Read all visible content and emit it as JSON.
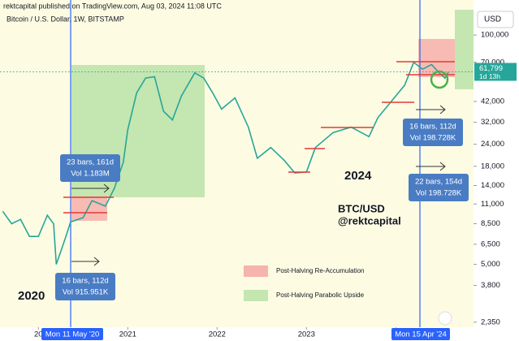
{
  "chart_data": {
    "type": "line",
    "log_scale": true,
    "color": "#26a69a",
    "header": "rektcapital published on TradingView.com, Aug 03, 2024 11:08 UTC",
    "title": "Bitcoin / U.S. Dollar, 1W, BITSTAMP",
    "currency": "USD",
    "x": [
      2019.6,
      2019.7,
      2019.8,
      2019.9,
      2020.0,
      2020.1,
      2020.17,
      2020.2,
      2020.3,
      2020.36,
      2020.5,
      2020.6,
      2020.75,
      2020.85,
      2020.95,
      2021.0,
      2021.1,
      2021.2,
      2021.3,
      2021.4,
      2021.5,
      2021.6,
      2021.75,
      2021.85,
      2021.95,
      2022.05,
      2022.2,
      2022.35,
      2022.45,
      2022.6,
      2022.75,
      2022.87,
      2023.0,
      2023.1,
      2023.3,
      2023.5,
      2023.7,
      2023.8,
      2023.95,
      2024.1,
      2024.2,
      2024.3,
      2024.4,
      2024.5,
      2024.55,
      2024.59
    ],
    "values": [
      10000,
      8500,
      9000,
      7200,
      7200,
      9500,
      8500,
      5000,
      7000,
      8700,
      9200,
      11500,
      10700,
      13500,
      19000,
      29000,
      47000,
      57000,
      58000,
      37000,
      33000,
      45000,
      61000,
      57000,
      47000,
      38000,
      44000,
      30000,
      20000,
      23000,
      19500,
      16500,
      16700,
      23000,
      28000,
      30000,
      26500,
      34000,
      42000,
      52000,
      70000,
      64000,
      68000,
      60000,
      57000,
      61799
    ],
    "xlim": [
      2019.57,
      2024.87
    ],
    "xticks": [
      {
        "value": 2020,
        "label": "20"
      },
      2021,
      2022,
      2023,
      {
        "value": 2024,
        "label": "2"
      }
    ],
    "ylim": [
      2200,
      158000
    ],
    "yticks": [
      {
        "value": 100000,
        "label": "100,000"
      },
      {
        "value": 70000,
        "label": "70,000"
      },
      {
        "value": 42000,
        "label": "42,000"
      },
      {
        "value": 32000,
        "label": "32,000"
      },
      {
        "value": 24000,
        "label": "24,000"
      },
      {
        "value": 18000,
        "label": "18,000"
      },
      {
        "value": 14000,
        "label": "14,000"
      },
      {
        "value": 11000,
        "label": "11,000"
      },
      {
        "value": 8500,
        "label": "8,500"
      },
      {
        "value": 6500,
        "label": "6,500"
      },
      {
        "value": 5000,
        "label": "5,000"
      },
      {
        "value": 3800,
        "label": "3,800"
      },
      {
        "value": 2350,
        "label": "2,350"
      }
    ],
    "price_tag": {
      "value": 61799,
      "label": "61,799",
      "countdown": "1d 13h"
    },
    "date_tags": [
      "Mon 11 May '20",
      "Mon 15 Apr '24"
    ],
    "legend": [
      {
        "label": "Post-Halving Re-Accumulation",
        "color": "#f6b4ad"
      },
      {
        "label": "Post-Halving Parabolic Upside",
        "color": "#c4e6b0"
      }
    ],
    "annotations": [
      {
        "line1": "23 bars, 161d",
        "line2": "Vol 1.183M"
      },
      {
        "line1": "16 bars, 112d",
        "line2": "Vol 915.951K"
      },
      {
        "line1": "16 bars, 112d",
        "line2": "Vol 198.728K"
      },
      {
        "line1": "22 bars, 154d",
        "line2": "Vol 198.728K"
      }
    ],
    "labels": [
      "2020",
      "2024",
      "BTC/USD",
      "@rektcapital"
    ]
  }
}
